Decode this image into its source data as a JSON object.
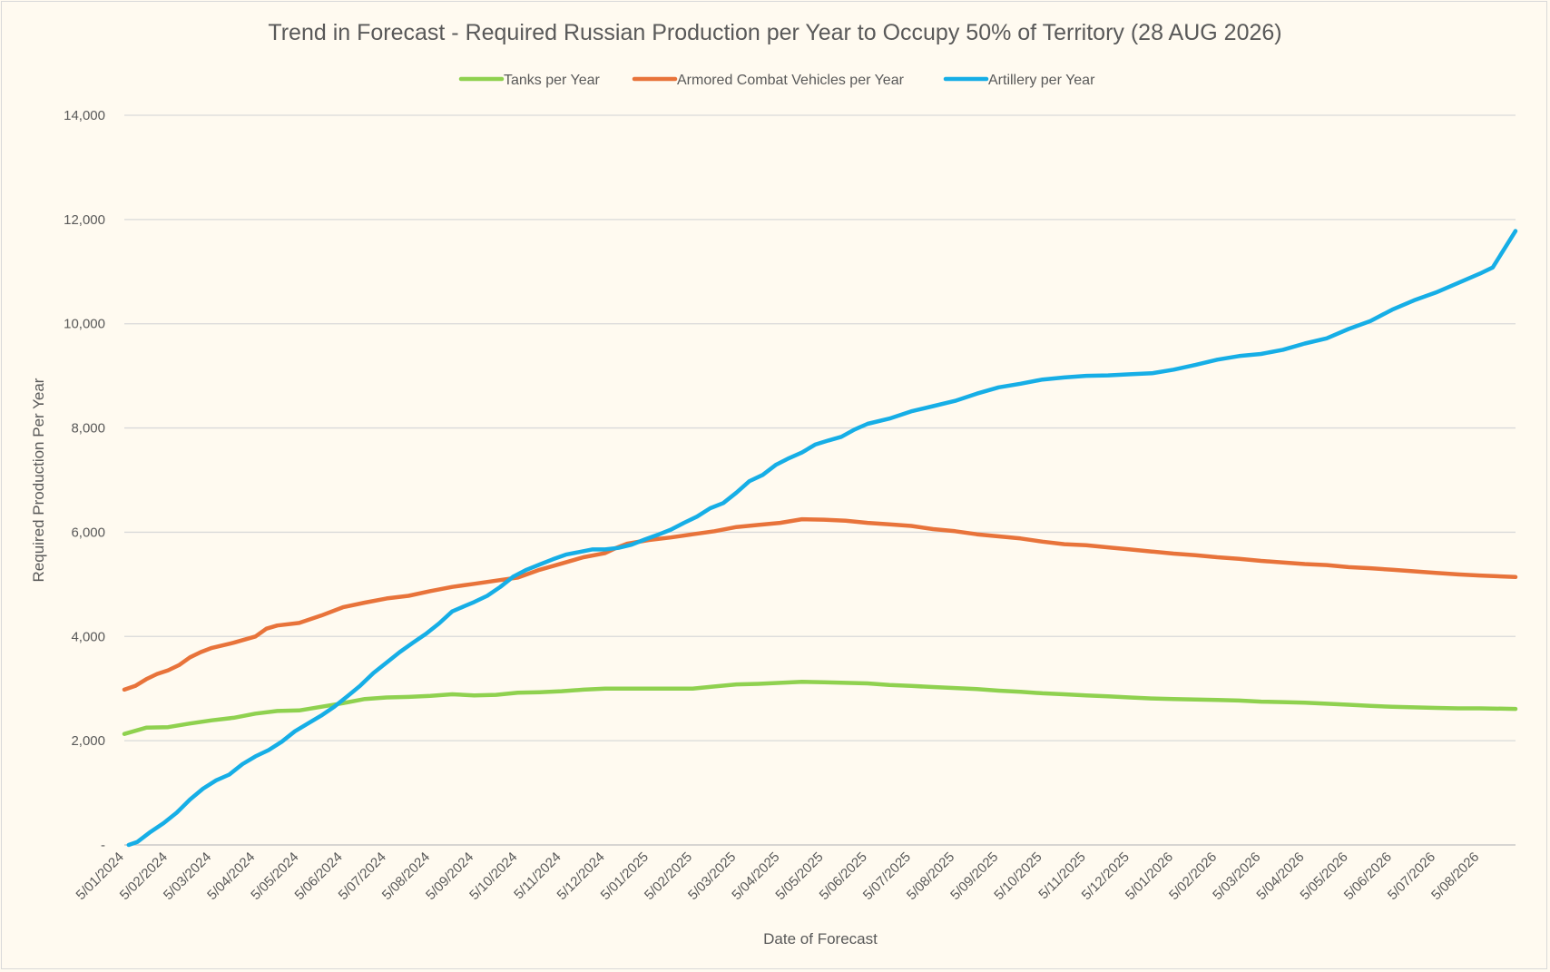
{
  "chart_data": {
    "type": "line",
    "title": "Trend in Forecast - Required Russian Production per Year to Occupy 50% of Territory (28 AUG 2026)",
    "xlabel": "Date of Forecast",
    "ylabel": "Required Production Per Year",
    "ylim": [
      0,
      14000
    ],
    "yticks": [
      0,
      2000,
      4000,
      6000,
      8000,
      10000,
      12000,
      14000
    ],
    "ytick_labels": [
      "-",
      "2,000",
      "4,000",
      "6,000",
      "8,000",
      "10,000",
      "12,000",
      "14,000"
    ],
    "grid": true,
    "legend_position": "top",
    "x_categories": [
      "5/01/2024",
      "5/02/2024",
      "5/03/2024",
      "5/04/2024",
      "5/05/2024",
      "5/06/2024",
      "5/07/2024",
      "5/08/2024",
      "5/09/2024",
      "5/10/2024",
      "5/11/2024",
      "5/12/2024",
      "5/01/2025",
      "5/02/2025",
      "5/03/2025",
      "5/04/2025",
      "5/05/2025",
      "5/06/2025",
      "5/07/2025",
      "5/08/2025",
      "5/09/2025",
      "5/10/2025",
      "5/11/2025",
      "5/12/2025",
      "5/01/2026",
      "5/02/2026",
      "5/03/2026",
      "5/04/2026",
      "5/05/2026",
      "5/06/2026",
      "5/07/2026",
      "5/08/2026"
    ],
    "x_end_offset": 0.82,
    "series": [
      {
        "name": "Tanks per Year",
        "color": "#8fd14f",
        "points": [
          [
            0,
            2130
          ],
          [
            0.5,
            2250
          ],
          [
            1,
            2260
          ],
          [
            1.5,
            2330
          ],
          [
            2,
            2390
          ],
          [
            2.5,
            2440
          ],
          [
            3,
            2520
          ],
          [
            3.5,
            2570
          ],
          [
            4,
            2580
          ],
          [
            4.5,
            2650
          ],
          [
            5,
            2720
          ],
          [
            5.5,
            2800
          ],
          [
            6,
            2830
          ],
          [
            6.5,
            2840
          ],
          [
            7,
            2860
          ],
          [
            7.5,
            2890
          ],
          [
            8,
            2870
          ],
          [
            8.5,
            2880
          ],
          [
            9,
            2920
          ],
          [
            9.5,
            2930
          ],
          [
            10,
            2950
          ],
          [
            10.5,
            2980
          ],
          [
            11,
            3000
          ],
          [
            12,
            3000
          ],
          [
            13,
            3000
          ],
          [
            13.5,
            3040
          ],
          [
            14,
            3080
          ],
          [
            14.5,
            3090
          ],
          [
            15,
            3110
          ],
          [
            15.5,
            3130
          ],
          [
            16,
            3120
          ],
          [
            16.5,
            3110
          ],
          [
            17,
            3100
          ],
          [
            17.5,
            3070
          ],
          [
            18,
            3050
          ],
          [
            18.5,
            3030
          ],
          [
            19,
            3010
          ],
          [
            19.5,
            2990
          ],
          [
            20,
            2960
          ],
          [
            20.5,
            2940
          ],
          [
            21,
            2910
          ],
          [
            21.5,
            2890
          ],
          [
            22,
            2870
          ],
          [
            22.5,
            2850
          ],
          [
            23,
            2830
          ],
          [
            23.5,
            2810
          ],
          [
            24,
            2800
          ],
          [
            24.5,
            2790
          ],
          [
            25,
            2780
          ],
          [
            25.5,
            2770
          ],
          [
            26,
            2750
          ],
          [
            26.5,
            2740
          ],
          [
            27,
            2730
          ],
          [
            27.5,
            2710
          ],
          [
            28,
            2690
          ],
          [
            28.5,
            2670
          ],
          [
            29,
            2650
          ],
          [
            29.5,
            2640
          ],
          [
            30,
            2630
          ],
          [
            30.5,
            2620
          ],
          [
            31,
            2620
          ],
          [
            31.82,
            2610
          ]
        ]
      },
      {
        "name": "Armored Combat Vehicles per Year",
        "color": "#e8733a",
        "points": [
          [
            0,
            2980
          ],
          [
            0.25,
            3050
          ],
          [
            0.5,
            3180
          ],
          [
            0.75,
            3280
          ],
          [
            1,
            3350
          ],
          [
            1.25,
            3450
          ],
          [
            1.5,
            3600
          ],
          [
            1.75,
            3700
          ],
          [
            2,
            3780
          ],
          [
            2.5,
            3880
          ],
          [
            3,
            4000
          ],
          [
            3.25,
            4150
          ],
          [
            3.5,
            4210
          ],
          [
            4,
            4260
          ],
          [
            4.5,
            4400
          ],
          [
            5,
            4560
          ],
          [
            5.5,
            4650
          ],
          [
            6,
            4730
          ],
          [
            6.5,
            4780
          ],
          [
            7,
            4870
          ],
          [
            7.5,
            4950
          ],
          [
            8,
            5010
          ],
          [
            8.5,
            5070
          ],
          [
            9,
            5130
          ],
          [
            9.5,
            5280
          ],
          [
            10,
            5400
          ],
          [
            10.5,
            5520
          ],
          [
            11,
            5600
          ],
          [
            11.25,
            5700
          ],
          [
            11.5,
            5780
          ],
          [
            12,
            5850
          ],
          [
            12.5,
            5900
          ],
          [
            13,
            5960
          ],
          [
            13.5,
            6020
          ],
          [
            14,
            6100
          ],
          [
            14.5,
            6140
          ],
          [
            15,
            6180
          ],
          [
            15.5,
            6250
          ],
          [
            16,
            6240
          ],
          [
            16.5,
            6220
          ],
          [
            17,
            6180
          ],
          [
            17.5,
            6150
          ],
          [
            18,
            6120
          ],
          [
            18.5,
            6060
          ],
          [
            19,
            6020
          ],
          [
            19.5,
            5960
          ],
          [
            20,
            5920
          ],
          [
            20.5,
            5880
          ],
          [
            21,
            5820
          ],
          [
            21.5,
            5770
          ],
          [
            22,
            5750
          ],
          [
            22.5,
            5710
          ],
          [
            23,
            5670
          ],
          [
            23.5,
            5630
          ],
          [
            24,
            5590
          ],
          [
            24.5,
            5560
          ],
          [
            25,
            5520
          ],
          [
            25.5,
            5490
          ],
          [
            26,
            5450
          ],
          [
            26.5,
            5420
          ],
          [
            27,
            5390
          ],
          [
            27.5,
            5370
          ],
          [
            28,
            5330
          ],
          [
            28.5,
            5310
          ],
          [
            29,
            5280
          ],
          [
            29.5,
            5250
          ],
          [
            30,
            5220
          ],
          [
            30.5,
            5190
          ],
          [
            31,
            5170
          ],
          [
            31.82,
            5140
          ]
        ]
      },
      {
        "name": "Artillery per Year",
        "color": "#16aee6",
        "points": [
          [
            0.1,
            0
          ],
          [
            0.3,
            60
          ],
          [
            0.6,
            250
          ],
          [
            0.9,
            420
          ],
          [
            1.2,
            620
          ],
          [
            1.5,
            870
          ],
          [
            1.8,
            1080
          ],
          [
            2.1,
            1240
          ],
          [
            2.4,
            1350
          ],
          [
            2.7,
            1550
          ],
          [
            3,
            1700
          ],
          [
            3.3,
            1820
          ],
          [
            3.6,
            1980
          ],
          [
            3.9,
            2180
          ],
          [
            4.2,
            2330
          ],
          [
            4.5,
            2480
          ],
          [
            4.8,
            2650
          ],
          [
            5.1,
            2850
          ],
          [
            5.4,
            3060
          ],
          [
            5.7,
            3300
          ],
          [
            6,
            3500
          ],
          [
            6.3,
            3700
          ],
          [
            6.6,
            3880
          ],
          [
            6.9,
            4050
          ],
          [
            7.2,
            4250
          ],
          [
            7.5,
            4480
          ],
          [
            7.8,
            4590
          ],
          [
            8,
            4660
          ],
          [
            8.3,
            4780
          ],
          [
            8.6,
            4950
          ],
          [
            8.9,
            5150
          ],
          [
            9.2,
            5280
          ],
          [
            9.5,
            5380
          ],
          [
            9.8,
            5480
          ],
          [
            10.1,
            5570
          ],
          [
            10.4,
            5620
          ],
          [
            10.7,
            5670
          ],
          [
            11,
            5670
          ],
          [
            11.3,
            5700
          ],
          [
            11.6,
            5760
          ],
          [
            11.9,
            5860
          ],
          [
            12.2,
            5950
          ],
          [
            12.5,
            6050
          ],
          [
            12.8,
            6180
          ],
          [
            13.1,
            6300
          ],
          [
            13.4,
            6460
          ],
          [
            13.7,
            6560
          ],
          [
            14,
            6760
          ],
          [
            14.3,
            6980
          ],
          [
            14.6,
            7100
          ],
          [
            14.9,
            7290
          ],
          [
            15.2,
            7420
          ],
          [
            15.5,
            7530
          ],
          [
            15.8,
            7680
          ],
          [
            16.1,
            7760
          ],
          [
            16.4,
            7830
          ],
          [
            16.7,
            7970
          ],
          [
            17,
            8080
          ],
          [
            17.5,
            8180
          ],
          [
            18,
            8320
          ],
          [
            18.5,
            8420
          ],
          [
            19,
            8520
          ],
          [
            19.5,
            8660
          ],
          [
            20,
            8780
          ],
          [
            20.5,
            8850
          ],
          [
            21,
            8930
          ],
          [
            21.5,
            8970
          ],
          [
            22,
            9000
          ],
          [
            22.5,
            9010
          ],
          [
            23,
            9030
          ],
          [
            23.5,
            9050
          ],
          [
            24,
            9120
          ],
          [
            24.5,
            9210
          ],
          [
            25,
            9310
          ],
          [
            25.5,
            9380
          ],
          [
            26,
            9420
          ],
          [
            26.5,
            9500
          ],
          [
            27,
            9620
          ],
          [
            27.5,
            9720
          ],
          [
            28,
            9900
          ],
          [
            28.5,
            10050
          ],
          [
            29,
            10270
          ],
          [
            29.5,
            10450
          ],
          [
            30,
            10600
          ],
          [
            30.5,
            10780
          ],
          [
            31,
            10960
          ],
          [
            31.3,
            11080
          ],
          [
            31.82,
            11780
          ]
        ]
      }
    ]
  }
}
